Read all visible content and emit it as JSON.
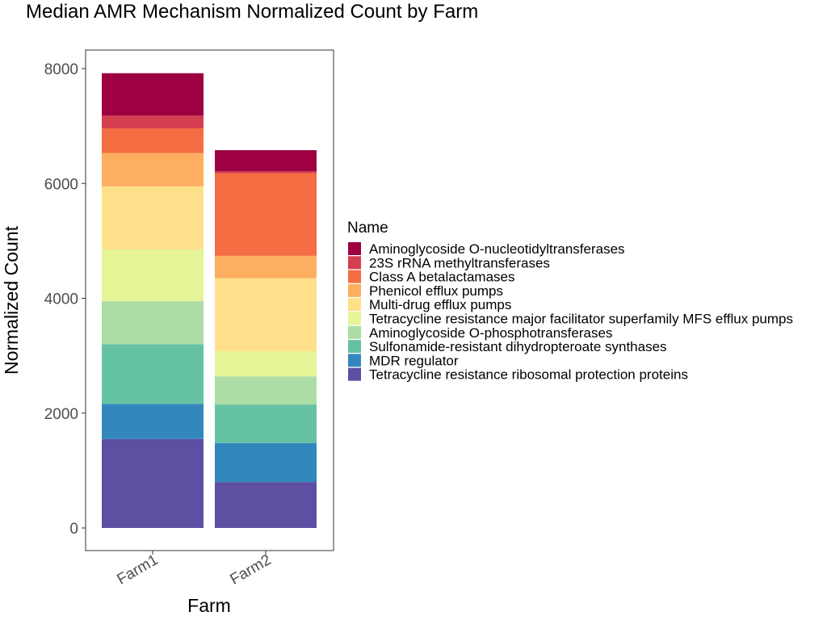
{
  "chart_data": {
    "type": "bar",
    "stacked": true,
    "title": "Median AMR Mechanism Normalized Count by Farm",
    "xlabel": "Farm",
    "ylabel": "Normalized Count",
    "categories": [
      "Farm1",
      "Farm2"
    ],
    "ylim": [
      0,
      8000
    ],
    "yticks": [
      0,
      2000,
      4000,
      6000,
      8000
    ],
    "grid": false,
    "legend": {
      "title": "Name",
      "position": "right"
    },
    "series": [
      {
        "name": "Tetracycline resistance ribosomal protection proteins",
        "color": "#5E4FA2",
        "values": [
          1550,
          800
        ]
      },
      {
        "name": "MDR regulator",
        "color": "#3288BD",
        "values": [
          610,
          680
        ]
      },
      {
        "name": "Sulfonamide-resistant dihydropteroate synthases",
        "color": "#66C2A5",
        "values": [
          1040,
          670
        ]
      },
      {
        "name": "Aminoglycoside O-phosphotransferases",
        "color": "#ABDDA4",
        "values": [
          750,
          490
        ]
      },
      {
        "name": "Tetracycline resistance major facilitator superfamily MFS efflux pumps",
        "color": "#E6F598",
        "values": [
          900,
          440
        ]
      },
      {
        "name": "Multi-drug efflux pumps",
        "color": "#FEE08B",
        "values": [
          1100,
          1270
        ]
      },
      {
        "name": "Phenicol efflux pumps",
        "color": "#FDAE61",
        "values": [
          580,
          390
        ]
      },
      {
        "name": "Class A betalactamases",
        "color": "#F46D43",
        "values": [
          430,
          1440
        ]
      },
      {
        "name": "23S rRNA methyltransferases",
        "color": "#D53E4F",
        "values": [
          220,
          30
        ]
      },
      {
        "name": "Aminoglycoside O-nucleotidyltransferases",
        "color": "#9E0142",
        "values": [
          740,
          370
        ]
      }
    ]
  }
}
